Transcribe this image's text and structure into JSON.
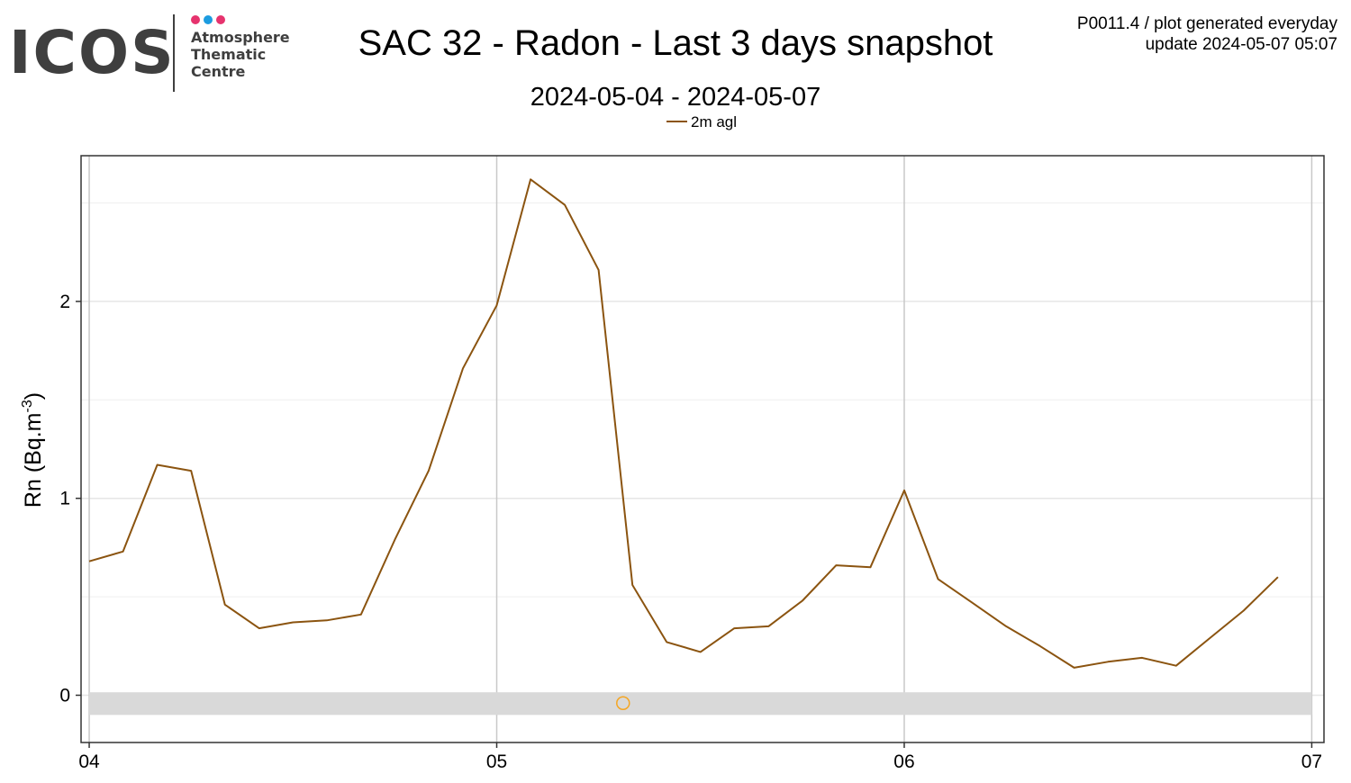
{
  "header": {
    "title": "SAC 32 - Radon - Last 3 days snapshot",
    "subtitle": "2024-05-04 - 2024-05-07",
    "meta_line1": "P0011.4 / plot generated everyday",
    "meta_line2": "update  2024-05-07 05:07"
  },
  "logo": {
    "letters": "ICOS",
    "line1": "Atmosphere",
    "line2": "Thematic",
    "line3": "Centre",
    "dot_colors": [
      "#e6336e",
      "#1c9ce0",
      "#e6336e"
    ],
    "text_color": "#3f3f3f"
  },
  "chart_data": {
    "type": "line",
    "xlabel": "",
    "ylabel": "Rn (Bq.m",
    "ylabel_sup": "-3",
    "ylabel_close": ")",
    "x_ticks": [
      {
        "day": 0,
        "label": "04"
      },
      {
        "day": 1,
        "label": "05"
      },
      {
        "day": 2,
        "label": "06"
      },
      {
        "day": 3,
        "label": "07"
      }
    ],
    "y_ticks": [
      0,
      1,
      2
    ],
    "y_minor_ticks": [
      0.5,
      1.5,
      2.5
    ],
    "xlim": [
      -0.02,
      3.03
    ],
    "ylim": [
      -0.24,
      2.74
    ],
    "legend": {
      "position": "top-center",
      "label": "2m agl",
      "color": "#8b5410"
    },
    "series": [
      {
        "name": "2m agl",
        "color": "#8b5410",
        "x": [
          0.0,
          0.083,
          0.167,
          0.25,
          0.333,
          0.417,
          0.5,
          0.583,
          0.667,
          0.75,
          0.833,
          0.917,
          1.0,
          1.083,
          1.167,
          1.25,
          1.333,
          1.417,
          1.5,
          1.583,
          1.667,
          1.75,
          1.833,
          1.917,
          2.0,
          2.083,
          2.167,
          2.25,
          2.333,
          2.417,
          2.5,
          2.583,
          2.667,
          2.75,
          2.833,
          2.917
        ],
        "y": [
          0.68,
          0.73,
          1.17,
          1.14,
          0.46,
          0.34,
          0.37,
          0.38,
          0.41,
          0.79,
          1.14,
          1.66,
          1.98,
          2.62,
          2.49,
          2.16,
          0.56,
          0.27,
          0.22,
          0.34,
          0.35,
          0.48,
          0.66,
          0.65,
          1.04,
          0.59,
          0.47,
          0.35,
          0.25,
          0.14,
          0.17,
          0.19,
          0.15,
          0.29,
          0.43,
          0.6
        ]
      }
    ],
    "flag_band": {
      "y_from": -0.1,
      "y_to": 0.015,
      "color": "#d9d9d9"
    },
    "flag_points": [
      {
        "x": 1.31,
        "y": -0.04,
        "color": "#f5a623"
      }
    ]
  }
}
